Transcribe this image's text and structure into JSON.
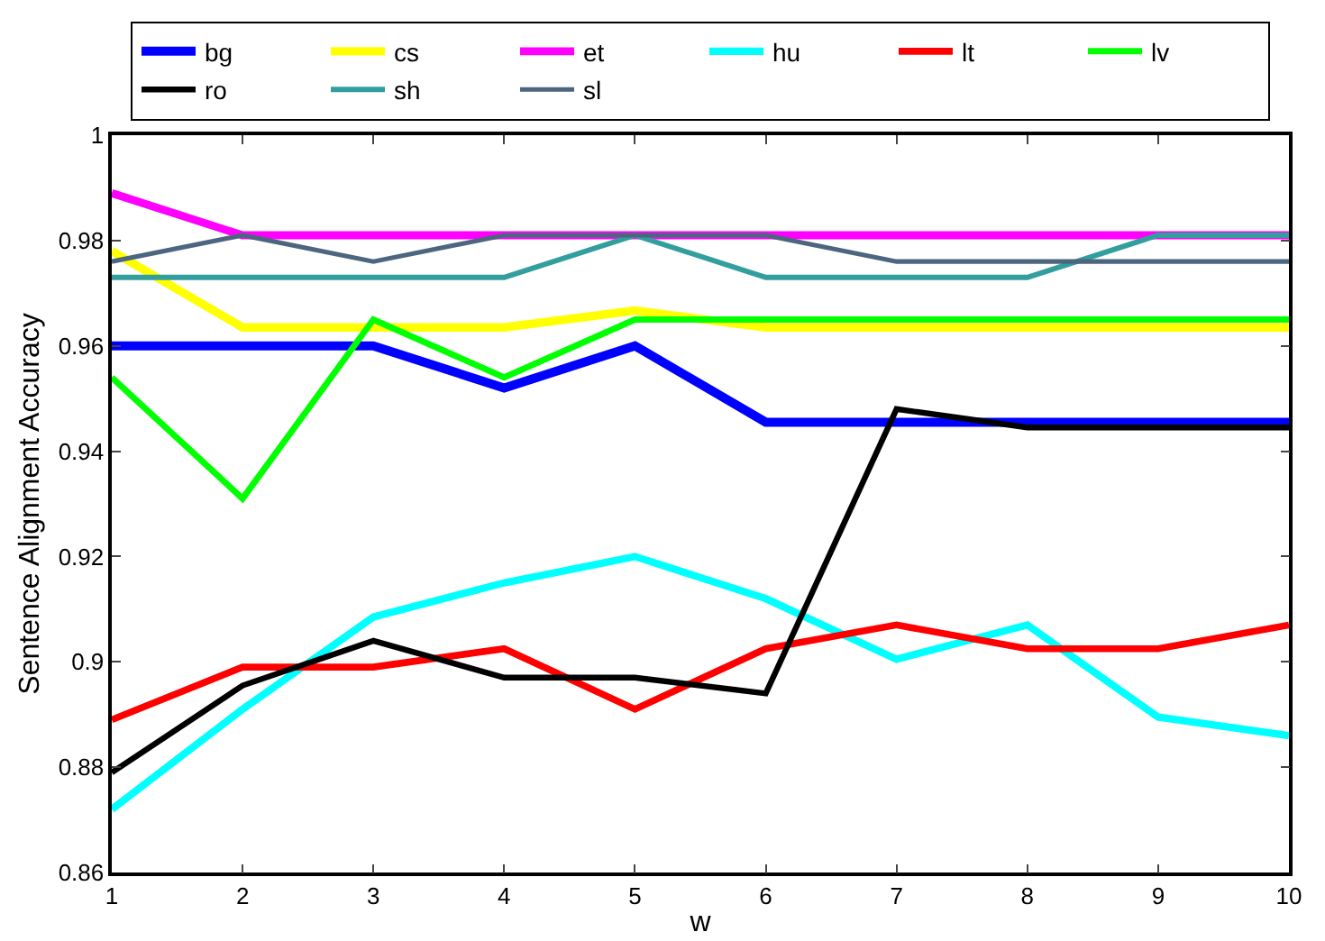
{
  "chart_data": {
    "type": "line",
    "xlabel": "w",
    "ylabel": "Sentence Alignment Accuracy",
    "x": [
      1,
      2,
      3,
      4,
      5,
      6,
      7,
      8,
      9,
      10
    ],
    "xlim": [
      1,
      10
    ],
    "xticks": [
      1,
      2,
      3,
      4,
      5,
      6,
      7,
      8,
      9,
      10
    ],
    "ylim": [
      0.86,
      1
    ],
    "yticks": [
      {
        "value": 0.86,
        "label": "0.86"
      },
      {
        "value": 0.88,
        "label": "0.88"
      },
      {
        "value": 0.9,
        "label": "0.9"
      },
      {
        "value": 0.92,
        "label": "0.92"
      },
      {
        "value": 0.94,
        "label": "0.94"
      },
      {
        "value": 0.96,
        "label": "0.96"
      },
      {
        "value": 0.98,
        "label": "0.98"
      },
      1
    ],
    "grid": false,
    "legend": "top",
    "marker": "none",
    "line_style": "solid",
    "series": [
      {
        "name": "bg",
        "color": "#0000ff",
        "values": [
          0.96,
          0.96,
          0.96,
          0.952,
          0.96,
          0.9455,
          0.9455,
          0.9455,
          0.9455,
          0.9455
        ]
      },
      {
        "name": "cs",
        "color": "#ffff00",
        "values": [
          0.978,
          0.9635,
          0.9635,
          0.9635,
          0.9667,
          0.9635,
          0.9635,
          0.9635,
          0.9635,
          0.9635
        ]
      },
      {
        "name": "et",
        "color": "#ff00ff",
        "values": [
          0.989,
          0.981,
          0.981,
          0.981,
          0.981,
          0.981,
          0.981,
          0.981,
          0.981,
          0.981
        ]
      },
      {
        "name": "hu",
        "color": "#00ffff",
        "values": [
          0.872,
          0.891,
          0.9085,
          0.915,
          0.92,
          0.912,
          0.9005,
          0.907,
          0.8895,
          0.886
        ]
      },
      {
        "name": "lt",
        "color": "#ff0000",
        "values": [
          0.889,
          0.899,
          0.899,
          0.9025,
          0.891,
          0.9025,
          0.907,
          0.9025,
          0.9025,
          0.907
        ]
      },
      {
        "name": "lv",
        "color": "#00ff00",
        "values": [
          0.954,
          0.931,
          0.965,
          0.954,
          0.965,
          0.965,
          0.965,
          0.965,
          0.965,
          0.965
        ]
      },
      {
        "name": "ro",
        "color": "#000000",
        "values": [
          0.879,
          0.8955,
          0.904,
          0.897,
          0.897,
          0.894,
          0.948,
          0.9445,
          0.9445,
          0.9445
        ]
      },
      {
        "name": "sh",
        "color": "#339e9e",
        "values": [
          0.973,
          0.973,
          0.973,
          0.973,
          0.981,
          0.973,
          0.973,
          0.973,
          0.981,
          0.981
        ]
      },
      {
        "name": "sl",
        "color": "#4d6680",
        "values": [
          0.976,
          0.981,
          0.976,
          0.981,
          0.981,
          0.981,
          0.976,
          0.976,
          0.976,
          0.976
        ]
      }
    ]
  }
}
